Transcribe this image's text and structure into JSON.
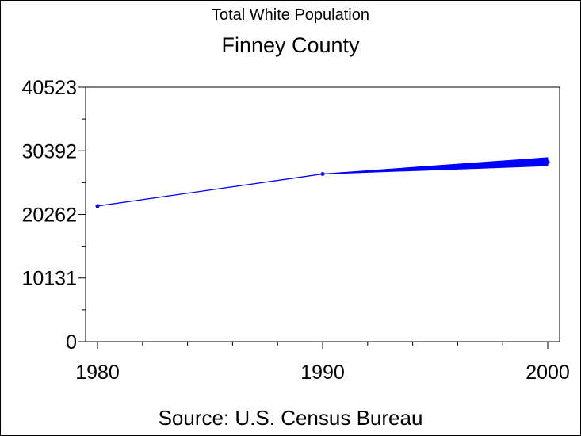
{
  "chart_data": {
    "type": "line",
    "title": "Total White Population",
    "subtitle": "Finney County",
    "footnote": "Source: U.S. Census Bureau",
    "xlabel": "",
    "ylabel": "",
    "xlim": [
      1980,
      2000
    ],
    "ylim": [
      0,
      40523
    ],
    "x_ticks": [
      1980,
      1990,
      2000
    ],
    "x_minor_step": 2,
    "y_ticks": [
      0,
      10131,
      20262,
      30392,
      40523
    ],
    "y_tick_labels": [
      "0",
      "10131",
      "20262",
      "30392",
      "40523"
    ],
    "y_minor_count": 1,
    "grid": false,
    "series": [
      {
        "color": "#0000ff",
        "points": [
          {
            "x": 1980,
            "y": 21600
          },
          {
            "x": 1990,
            "y": 26700
          },
          {
            "x": 2000,
            "y": 28600
          }
        ],
        "upper_2000": 29300,
        "lower_2000": 28000
      }
    ]
  }
}
